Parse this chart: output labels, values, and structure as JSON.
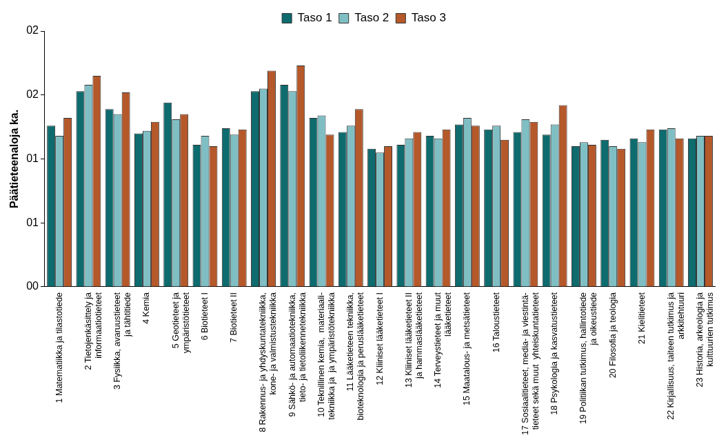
{
  "chart_data": {
    "type": "bar",
    "ylabel": "Päätieteenaloja ka.",
    "categories": [
      "1 Matematiikka ja tilastotiede",
      "2 Tietojenkäsittely ja\ninformaatiotieteet",
      "3 Fysiikka, avaruustieteet\nja tähtitiede",
      "4 Kemia",
      "5 Geotieteet ja\nympäristötieteet",
      "6 Biotieteet I",
      "7 Biotieteet II",
      "8 Rakennus- ja yhdyskuntatekniikka,\nkone- ja valmistustekniikka",
      "9 Sähkö- ja automaatiotekniikka,\ntieto- ja tietoliikennetekniikka",
      "10 Teknillinen kemia,  materiaali-\ntekniikka ja  ja ympäristötekniikka",
      "11 Lääketieteen tekniikka,\nbioteknologia ja peruslääketieteet",
      "12 Kliiniset lääketieteet I",
      "13 Kliiniset lääketieteet II\nja hammaslääketieteet",
      "14 Terveystieteet ja muut\nlääketieteet",
      "15 Maatalous- ja metsätieteet",
      "16 Taloustieteet",
      "17 Sosiaalitieteet, media- ja viestintä-\ntieteet sekä muut  yhteiskuntatieteet",
      "18 Psykologia ja kasvatustieteet",
      "19 Politiikan tutkimus, hallintotiede\nja oikeustiede",
      "20 Filosofia ja teologia",
      "21 Kielitieteet",
      "22 Kirjallisuus, taiteen tutkimus ja\narkkitehtuuri",
      "23 Historia, arkeologia ja\nkulttuurien tutkimus"
    ],
    "series": [
      {
        "name": "Taso 1",
        "color": "#0e6b6e",
        "values": [
          1.26,
          1.53,
          1.39,
          1.2,
          1.44,
          1.11,
          1.24,
          1.53,
          1.58,
          1.32,
          1.21,
          1.08,
          1.11,
          1.18,
          1.27,
          1.23,
          1.21,
          1.19,
          1.1,
          1.15,
          1.16,
          1.23,
          1.16
        ]
      },
      {
        "name": "Taso 2",
        "color": "#7fbfc4",
        "values": [
          1.18,
          1.58,
          1.35,
          1.22,
          1.31,
          1.18,
          1.19,
          1.55,
          1.53,
          1.34,
          1.26,
          1.05,
          1.16,
          1.16,
          1.32,
          1.26,
          1.31,
          1.27,
          1.13,
          1.1,
          1.13,
          1.24,
          1.18
        ]
      },
      {
        "name": "Taso 3",
        "color": "#b5582a",
        "values": [
          1.32,
          1.65,
          1.52,
          1.29,
          1.35,
          1.1,
          1.23,
          1.69,
          1.73,
          1.19,
          1.39,
          1.1,
          1.21,
          1.23,
          1.26,
          1.15,
          1.29,
          1.42,
          1.11,
          1.08,
          1.23,
          1.16,
          1.18
        ]
      }
    ],
    "ylim": [
      0,
      2
    ],
    "yticks": [
      {
        "value": 0,
        "label": "00"
      },
      {
        "value": 0.5,
        "label": "01"
      },
      {
        "value": 1,
        "label": "01"
      },
      {
        "value": 1.5,
        "label": "02"
      },
      {
        "value": 2,
        "label": "02"
      }
    ],
    "grid": false,
    "legend": "top"
  }
}
